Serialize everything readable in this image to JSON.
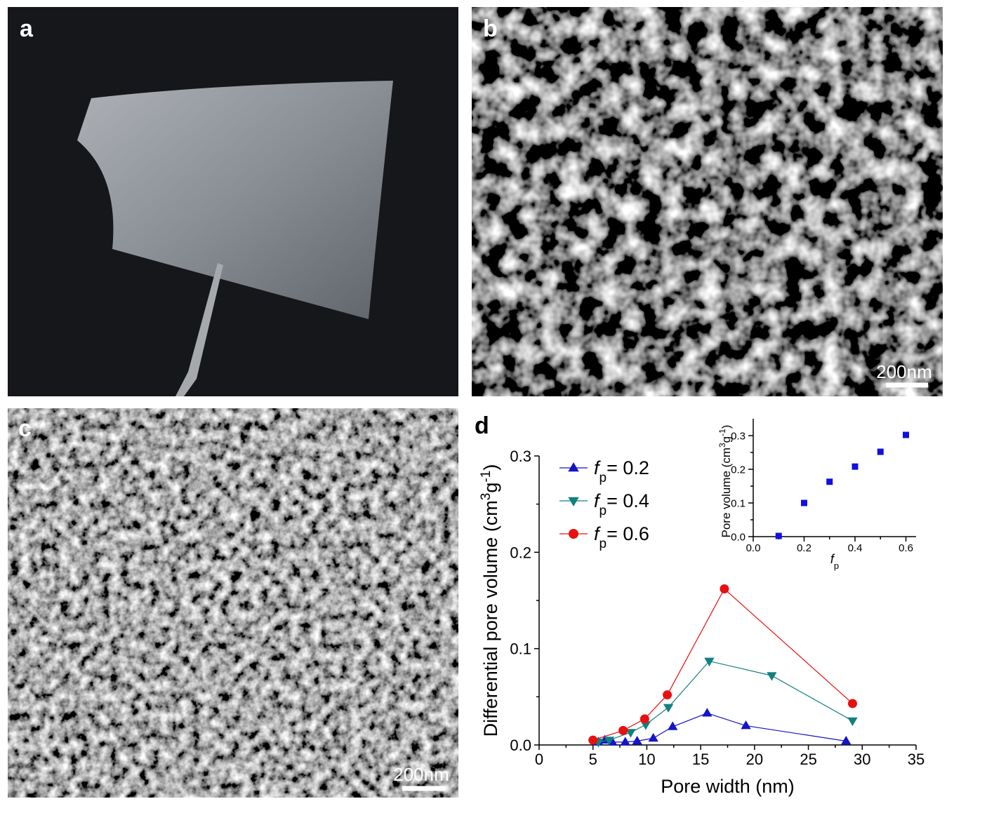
{
  "panels": [
    {
      "label": "a"
    },
    {
      "label": "b",
      "scale_bar": "200nm"
    },
    {
      "label": "c",
      "scale_bar": "200nm"
    },
    {
      "label": "d"
    }
  ],
  "chart_data": [
    {
      "type": "line",
      "xlabel": "Pore width (nm)",
      "ylabel": [
        {
          "text": "Differential pore volume (cm"
        },
        {
          "text": "3",
          "shift": "super"
        },
        {
          "text": "g"
        },
        {
          "text": "-1",
          "shift": "super"
        },
        {
          "text": ")"
        }
      ],
      "xlim": [
        0,
        35
      ],
      "xticks": [
        0,
        5,
        10,
        15,
        20,
        25,
        30,
        35
      ],
      "ylim": [
        0,
        0.3
      ],
      "yticks": [
        {
          "value": 0,
          "label": "0.0"
        },
        {
          "value": 0.1,
          "label": "0.1"
        },
        {
          "value": 0.2,
          "label": "0.2"
        },
        {
          "value": 0.3,
          "label": "0.3"
        }
      ],
      "legend": "upper left",
      "series": [
        {
          "name": [
            {
              "text": "f",
              "style": "italic"
            },
            {
              "text": "p",
              "shift": "sub"
            },
            {
              "text": "= 0.2"
            }
          ],
          "color": "#1414c8",
          "marker": "triangle-up",
          "x": [
            5.5,
            6.1,
            6.8,
            8.0,
            9.1,
            10.6,
            12.4,
            15.6,
            19.2,
            28.5
          ],
          "values": [
            0.003,
            0.005,
            0.003,
            0.003,
            0.004,
            0.007,
            0.019,
            0.033,
            0.02,
            0.004
          ]
        },
        {
          "name": [
            {
              "text": "f",
              "style": "italic"
            },
            {
              "text": "p",
              "shift": "sub"
            },
            {
              "text": "= 0.4"
            }
          ],
          "color": "#138080",
          "marker": "triangle-down",
          "x": [
            5.5,
            6.5,
            8.5,
            9.9,
            12.0,
            15.8,
            21.6,
            29.1
          ],
          "values": [
            0.003,
            0.005,
            0.013,
            0.021,
            0.039,
            0.087,
            0.072,
            0.025
          ]
        },
        {
          "name": [
            {
              "text": "f",
              "style": "italic"
            },
            {
              "text": "p",
              "shift": "sub"
            },
            {
              "text": "= 0.6"
            }
          ],
          "color": "#e81010",
          "marker": "circle",
          "x": [
            5.0,
            7.8,
            9.8,
            11.9,
            17.2,
            29.1
          ],
          "values": [
            0.005,
            0.015,
            0.027,
            0.052,
            0.162,
            0.043
          ]
        }
      ]
    },
    {
      "type": "scatter",
      "xlabel": [
        {
          "text": "f",
          "style": "italic"
        },
        {
          "text": "p",
          "shift": "sub"
        }
      ],
      "ylabel": [
        {
          "text": "Pore volume (cm"
        },
        {
          "text": "3",
          "shift": "super"
        },
        {
          "text": "g"
        },
        {
          "text": "-1",
          "shift": "super"
        },
        {
          "text": ")"
        }
      ],
      "xlim": [
        0,
        0.64
      ],
      "xticks": [
        {
          "value": 0,
          "label": "0.0"
        },
        {
          "value": 0.2,
          "label": "0.2"
        },
        {
          "value": 0.4,
          "label": "0.4"
        },
        {
          "value": 0.6,
          "label": "0.6"
        }
      ],
      "ylim": [
        0,
        0.35
      ],
      "yticks": [
        {
          "value": 0,
          "label": "0.0"
        },
        {
          "value": 0.1,
          "label": "0.1"
        },
        {
          "value": 0.2,
          "label": "0.2"
        },
        {
          "value": 0.3,
          "label": "0.3"
        }
      ],
      "color": "#1010e0",
      "marker": "square",
      "x": [
        0.1,
        0.2,
        0.3,
        0.4,
        0.5,
        0.6
      ],
      "values": [
        0.002,
        0.1,
        0.163,
        0.208,
        0.252,
        0.302
      ]
    }
  ]
}
